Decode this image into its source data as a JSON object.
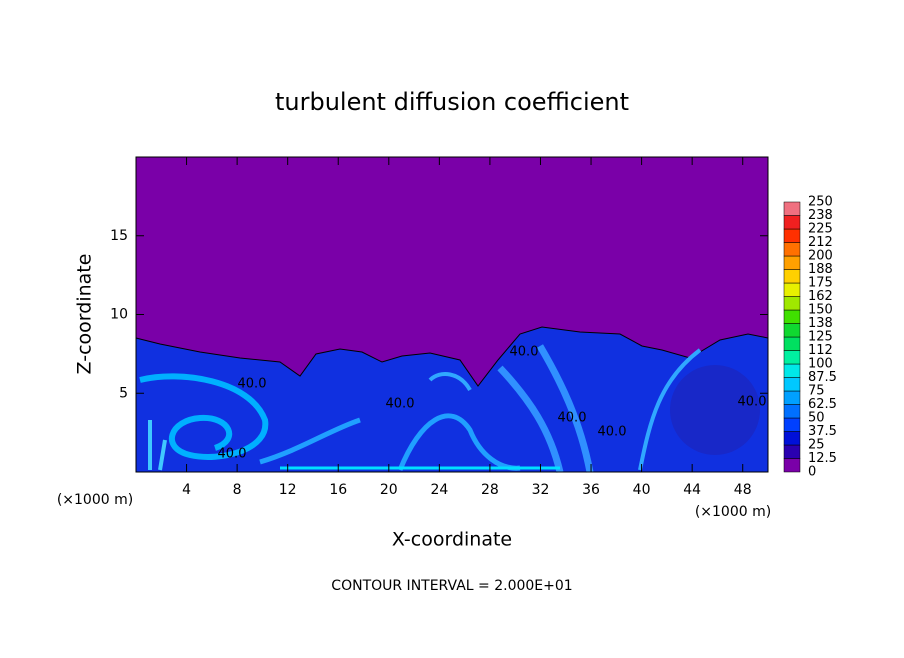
{
  "chart_data": {
    "type": "contour",
    "title": "turbulent diffusion coefficient",
    "x_label": "X-coordinate",
    "y_label": "Z-coordinate",
    "x_unit_left": "(×1000 m)",
    "x_unit_right": "(×1000 m)",
    "footnote": "CONTOUR INTERVAL = 2.000E+01",
    "xlim": [
      0,
      50
    ],
    "ylim": [
      0,
      20
    ],
    "xticks": [
      4,
      8,
      12,
      16,
      20,
      24,
      28,
      32,
      36,
      40,
      44,
      48
    ],
    "yticks": [
      5,
      10,
      15
    ],
    "contour_labels": [
      "40.0",
      "40.0",
      "40.0",
      "40.0",
      "40.0",
      "40.0",
      "40.0"
    ],
    "colorbar": {
      "ticks": [
        0,
        12.5,
        25,
        37.5,
        50,
        62.5,
        75,
        87.5,
        100,
        {
          "value": 112.5,
          "label": "112"
        },
        125,
        {
          "value": 137.5,
          "label": "138"
        },
        150,
        {
          "value": 162.5,
          "label": "162"
        },
        175,
        {
          "value": 187.5,
          "label": "188"
        },
        200,
        {
          "value": 212.5,
          "label": "212"
        },
        225,
        {
          "value": 237.5,
          "label": "238"
        },
        250
      ],
      "colors": [
        "#7a00a8",
        "#2a00b0",
        "#0010d8",
        "#0040ff",
        "#0070ff",
        "#00a0ff",
        "#00c8ff",
        "#00e8e8",
        "#00f0a0",
        "#00e060",
        "#10d830",
        "#40e000",
        "#a0e800",
        "#e8f000",
        "#ffd000",
        "#ffa000",
        "#ff7000",
        "#ff3000",
        "#f02020",
        "#f07080"
      ]
    }
  }
}
